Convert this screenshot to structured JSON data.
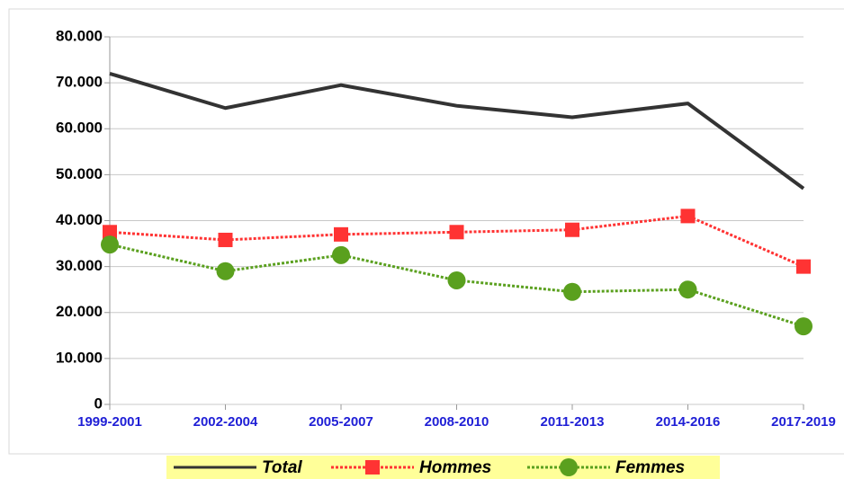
{
  "chart_data": {
    "type": "line",
    "categories": [
      "1999-2001",
      "2002-2004",
      "2005-2007",
      "2008-2010",
      "2011-2013",
      "2014-2016",
      "2017-2019"
    ],
    "series": [
      {
        "name": "Total",
        "color": "#333333",
        "values": [
          72000,
          64500,
          69500,
          65000,
          62500,
          65500,
          47000
        ]
      },
      {
        "name": "Hommes",
        "color": "#ff3333",
        "values": [
          37500,
          35800,
          37000,
          37500,
          38000,
          41000,
          30000
        ]
      },
      {
        "name": "Femmes",
        "color": "#5aa01e",
        "values": [
          34800,
          29000,
          32500,
          27000,
          24500,
          25000,
          17000
        ]
      }
    ],
    "ylim": [
      0,
      80000
    ],
    "yticks": [
      0,
      {
        "value": 10000,
        "label": "10.000"
      },
      {
        "value": 20000,
        "label": "20.000"
      },
      {
        "value": 30000,
        "label": "30.000"
      },
      {
        "value": 40000,
        "label": "40.000"
      },
      {
        "value": 50000,
        "label": "50.000"
      },
      {
        "value": 60000,
        "label": "60.000"
      },
      {
        "value": 70000,
        "label": "70.000"
      },
      {
        "value": 80000,
        "label": "80.000"
      }
    ],
    "grid": true,
    "legend": "bottom"
  }
}
